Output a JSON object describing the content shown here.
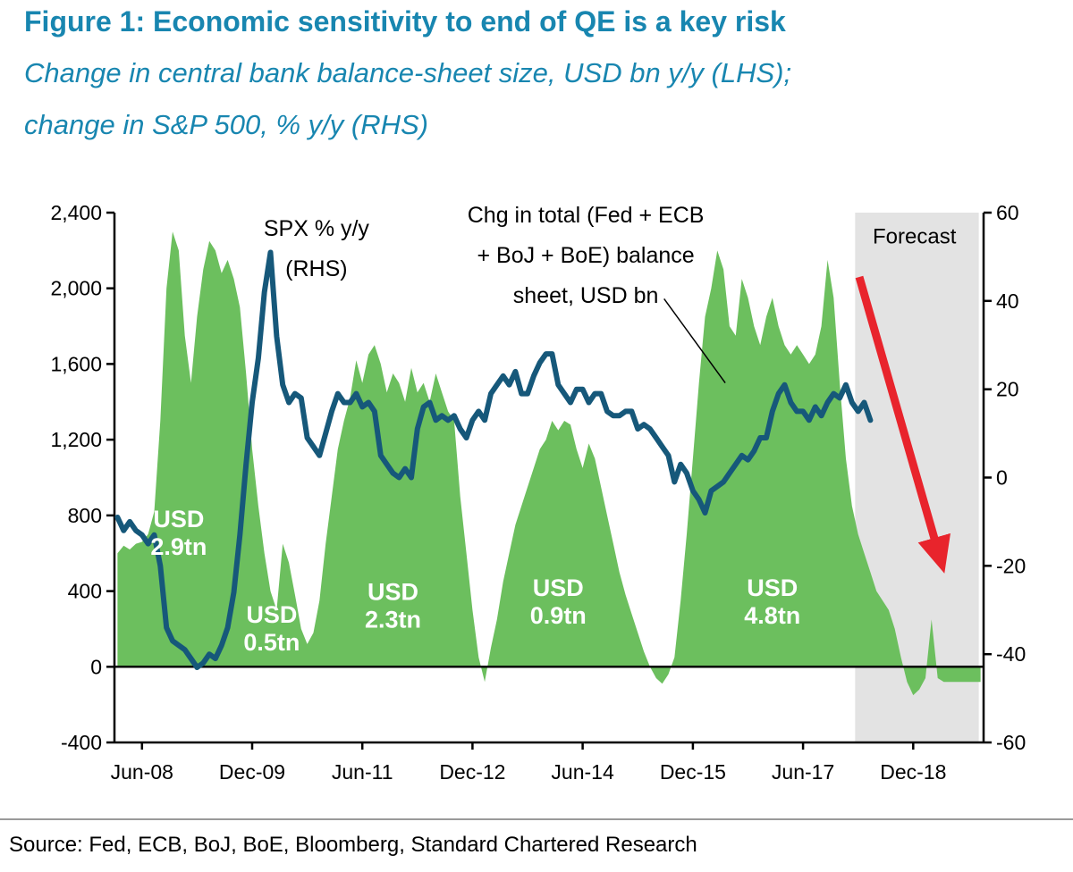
{
  "header": {
    "title": "Figure 1: Economic sensitivity to end of QE is a key risk",
    "subtitle_line1": "Change in central bank balance-sheet size, USD bn y/y (LHS);",
    "subtitle_line2": "change in S&P 500, % y/y (RHS)",
    "accent_color": "#1886b0"
  },
  "footer": {
    "source": "Source: Fed, ECB, BoJ, BoE, Bloomberg, Standard Chartered Research"
  },
  "chart_data": {
    "type": "area+line",
    "title": "Economic sensitivity to end of QE is a key risk",
    "x_unit": "months since Jun-2008, monthly data",
    "x_range": [
      -4.5,
      137.5
    ],
    "x_ticks": {
      "months": [
        0,
        18,
        36,
        54,
        72,
        90,
        108,
        126
      ],
      "labels": [
        "Jun-08",
        "Dec-09",
        "Jun-11",
        "Dec-12",
        "Jun-14",
        "Dec-15",
        "Jun-17",
        "Dec-18"
      ]
    },
    "lhs_axis": {
      "label": "Change in central bank balance-sheet size, USD bn y/y",
      "range": [
        -400,
        2400
      ],
      "tick_values": [
        2400,
        2000,
        1600,
        1200,
        800,
        400,
        0,
        -400
      ],
      "tick_labels": [
        "2,400",
        "2,000",
        "1,600",
        "1,200",
        "800",
        "400",
        "0",
        "-400"
      ]
    },
    "rhs_axis": {
      "label": "Change in S&P 500, % y/y",
      "range": [
        -60,
        60
      ],
      "tick_values": [
        60,
        40,
        20,
        0,
        -20,
        -40,
        -60
      ],
      "tick_labels": [
        "60",
        "40",
        "20",
        "0",
        "-20",
        "-40",
        "-60"
      ]
    },
    "series": [
      {
        "name": "Chg in total (Fed + ECB + BoJ + BoE) balance sheet, USD bn",
        "type": "area",
        "axis": "lhs",
        "color": "#6cbf5e",
        "start_month": -4,
        "values": [
          600,
          640,
          620,
          650,
          660,
          700,
          820,
          1300,
          2000,
          2300,
          2200,
          1750,
          1500,
          1850,
          2100,
          2250,
          2200,
          2080,
          2150,
          2050,
          1900,
          1550,
          1150,
          850,
          600,
          400,
          300,
          650,
          550,
          380,
          200,
          120,
          180,
          350,
          650,
          900,
          1150,
          1300,
          1420,
          1620,
          1500,
          1650,
          1700,
          1600,
          1450,
          1550,
          1500,
          1400,
          1580,
          1450,
          1500,
          1400,
          1550,
          1450,
          1350,
          1300,
          900,
          600,
          300,
          50,
          -80,
          100,
          250,
          450,
          600,
          750,
          850,
          950,
          1050,
          1150,
          1200,
          1300,
          1250,
          1300,
          1280,
          1150,
          1050,
          1180,
          1100,
          950,
          800,
          650,
          500,
          380,
          280,
          180,
          80,
          0,
          -60,
          -90,
          -40,
          50,
          350,
          700,
          1100,
          1500,
          1850,
          2000,
          2200,
          2100,
          1800,
          1750,
          2050,
          1950,
          1800,
          1700,
          1850,
          1950,
          1800,
          1700,
          1650,
          1700,
          1650,
          1600,
          1650,
          1800,
          2150,
          1950,
          1500,
          1100,
          850,
          700,
          600,
          500,
          400,
          350,
          300,
          200,
          50,
          -80,
          -150,
          -120,
          -60,
          250,
          -60,
          -80,
          -80,
          -80,
          -80,
          -80,
          -80,
          -80
        ]
      },
      {
        "name": "SPX % y/y (RHS)",
        "type": "line",
        "axis": "rhs",
        "color": "#16587a",
        "start_month": -4,
        "values": [
          -9,
          -12,
          -10,
          -12,
          -13,
          -15,
          -13,
          -20,
          -34,
          -37,
          -38,
          -39,
          -41,
          -43,
          -42,
          -40,
          -41,
          -38,
          -34,
          -26,
          -13,
          3,
          17,
          27,
          42,
          51,
          32,
          21,
          17,
          19,
          18,
          9,
          7,
          5,
          10,
          15,
          19,
          17,
          17,
          19,
          16,
          17,
          15,
          5,
          3,
          1,
          0,
          2,
          0,
          11,
          16,
          17,
          13,
          14,
          13,
          14,
          11,
          9,
          13,
          15,
          13,
          19,
          21,
          23,
          21,
          24,
          19,
          19,
          23,
          26,
          28,
          28,
          21,
          19,
          17,
          20,
          20,
          17,
          19,
          19,
          15,
          14,
          14,
          15,
          15,
          11,
          12,
          11,
          9,
          7,
          5,
          -1,
          3,
          1,
          -3,
          -5,
          -8,
          -3,
          -2,
          -1,
          1,
          3,
          5,
          4,
          6,
          9,
          9,
          15,
          19,
          21,
          17,
          15,
          15,
          13,
          16,
          14,
          17,
          19,
          18,
          21,
          17,
          15,
          17,
          13
        ]
      }
    ],
    "forecast_band": {
      "from_month": 116.5,
      "to_month": 136.7,
      "color": "#e3e3e3",
      "label": "Forecast",
      "label_month": 126.2,
      "label_value": 2275
    },
    "annotations": {
      "spx": {
        "lines": [
          "SPX % y/y",
          "(RHS)"
        ],
        "month": 28.5,
        "value": 2320
      },
      "balance": {
        "lines": [
          "Chg in total (Fed + ECB",
          "+ BoJ + BoE) balance",
          "sheet, USD bn"
        ],
        "month": 72.5,
        "value": 2390,
        "leader": {
          "m1": 85.3,
          "v1": 1945,
          "m2": 95.3,
          "v2": 1500
        }
      },
      "arrow": {
        "m1": 117.2,
        "v1": 2060,
        "m2": 129.8,
        "v2": 640,
        "color": "#e8242c"
      }
    },
    "usd_labels": [
      {
        "line1": "USD",
        "line2": "2.9tn",
        "month": 6.0,
        "value": 714
      },
      {
        "line1": "USD",
        "line2": "0.5tn",
        "month": 21.2,
        "value": 210
      },
      {
        "line1": "USD",
        "line2": "2.3tn",
        "month": 41.0,
        "value": 330
      },
      {
        "line1": "USD",
        "line2": "0.9tn",
        "month": 68.0,
        "value": 350
      },
      {
        "line1": "USD",
        "line2": "4.8tn",
        "month": 103.0,
        "value": 350
      }
    ]
  }
}
